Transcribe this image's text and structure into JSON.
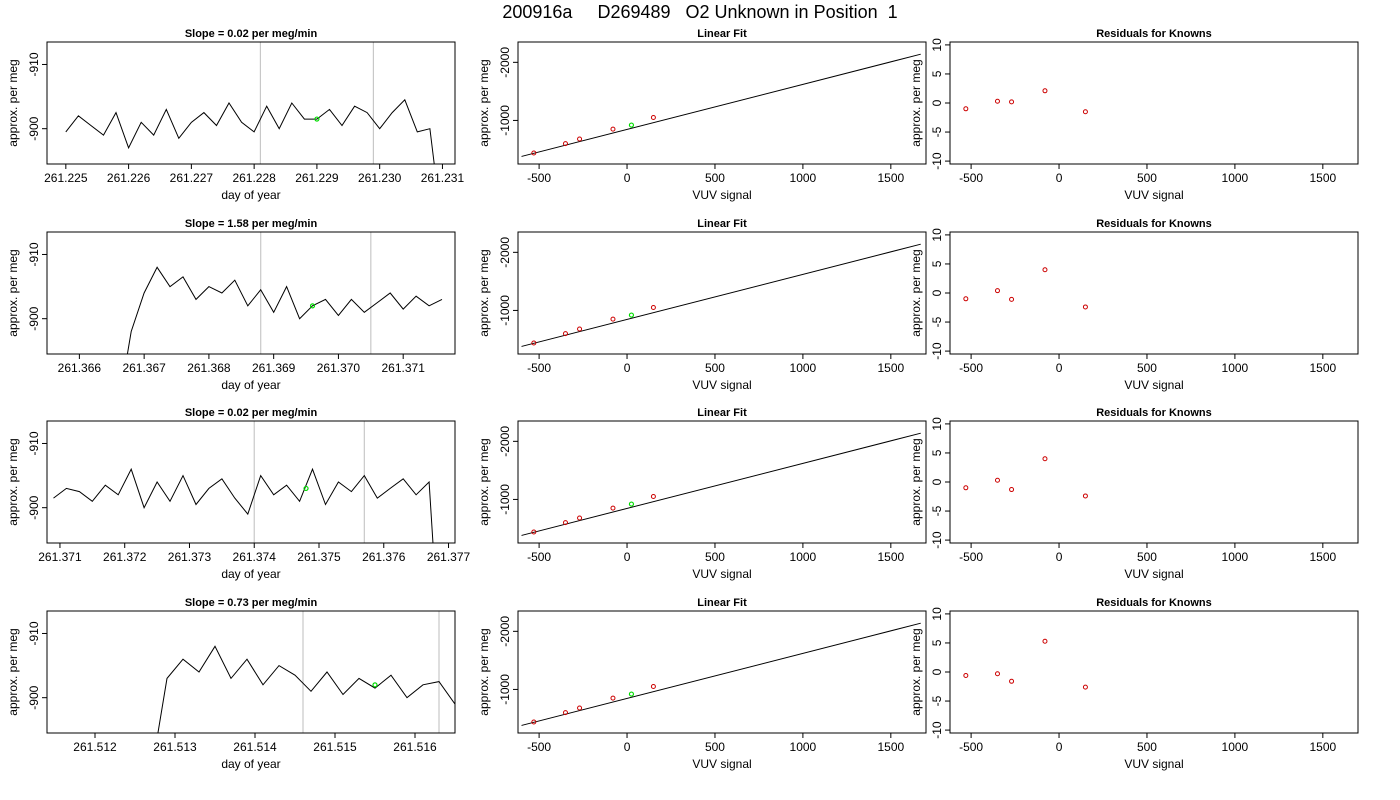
{
  "figure": {
    "title": "200916a     D269489   O2 Unknown in Position  1"
  },
  "colors": {
    "line": "#000000",
    "vertical_marker": "#c8c8c8",
    "current_point": "#00dd00",
    "known_point": "#cc0000"
  },
  "chart_data": [
    {
      "type": "line",
      "row": 1,
      "panel": "time-series",
      "title": "Slope =  0.02  per meg/min",
      "xlabel": "day of year",
      "ylabel": "approx. per meg",
      "xlim": [
        261.2247,
        261.2312
      ],
      "ylim": [
        -913.5,
        -894.5
      ],
      "y_reversed": true,
      "x_ticks": [
        261.225,
        261.226,
        261.227,
        261.228,
        261.229,
        261.23,
        261.231
      ],
      "x_tick_labels": [
        "261.225",
        "261.226",
        "261.227",
        "261.228",
        "261.229",
        "261.230",
        "261.231"
      ],
      "y_ticks": [
        -900,
        -910
      ],
      "y_tick_labels": [
        "-900",
        "-910"
      ],
      "vertical_lines": [
        261.2281,
        261.2299
      ],
      "current_point": {
        "x": 261.229,
        "y": -901.5
      },
      "series": [
        {
          "x": [
            261.225,
            261.2252,
            261.2254,
            261.2256,
            261.2258,
            261.226,
            261.2262,
            261.2264,
            261.2266,
            261.2268,
            261.227,
            261.2272,
            261.2274,
            261.2276,
            261.2278,
            261.228,
            261.2282,
            261.2284,
            261.2286,
            261.2288,
            261.229,
            261.2292,
            261.2294,
            261.2296,
            261.2298,
            261.23,
            261.2302,
            261.2304,
            261.2306,
            261.2308,
            261.2309
          ],
          "y": [
            -899.5,
            -902,
            -900.5,
            -899,
            -902.5,
            -897,
            -901,
            -899,
            -903,
            -898.5,
            -901,
            -902.5,
            -900.5,
            -904,
            -901,
            -899.5,
            -903.5,
            -900,
            -904,
            -901.5,
            -901.5,
            -903,
            -900.5,
            -903.5,
            -902.5,
            -900,
            -902.5,
            -904.5,
            -899.5,
            -900,
            -892
          ]
        }
      ]
    },
    {
      "type": "scatter",
      "row": 1,
      "panel": "linear-fit",
      "title": "Linear Fit",
      "xlabel": "VUV signal",
      "ylabel": "approx. per meg",
      "xlim": [
        -620,
        1700
      ],
      "ylim": [
        -2350,
        -250
      ],
      "y_reversed": true,
      "x_ticks": [
        -500,
        0,
        500,
        1000,
        1500
      ],
      "x_tick_labels": [
        "-500",
        "0",
        "500",
        "1000",
        "1500"
      ],
      "y_ticks": [
        -1000,
        -2000
      ],
      "y_tick_labels": [
        "-1000",
        "-2000"
      ],
      "fit_line": {
        "x": [
          -600,
          1670
        ],
        "y": [
          -380,
          -2140
        ]
      },
      "knowns": {
        "x": [
          -530,
          -350,
          -270,
          -80,
          150
        ],
        "y": [
          -440,
          -600,
          -680,
          -850,
          -1050
        ]
      },
      "unknown": {
        "x": [
          25
        ],
        "y": [
          -920
        ]
      }
    },
    {
      "type": "scatter",
      "row": 1,
      "panel": "residuals",
      "title": "Residuals for Knowns",
      "xlabel": "VUV signal",
      "ylabel": "approx. per meg",
      "xlim": [
        -620,
        1700
      ],
      "ylim": [
        -10.5,
        10.5
      ],
      "x_ticks": [
        -500,
        0,
        500,
        1000,
        1500
      ],
      "x_tick_labels": [
        "-500",
        "0",
        "500",
        "1000",
        "1500"
      ],
      "y_ticks": [
        10,
        5,
        0,
        -5,
        -10
      ],
      "y_tick_labels": [
        "10",
        "5",
        "0",
        "-5",
        "-10"
      ],
      "knowns": {
        "x": [
          -530,
          -350,
          -270,
          -80,
          150
        ],
        "y": [
          -1.0,
          0.3,
          0.2,
          2.1,
          -1.5
        ]
      }
    },
    {
      "type": "line",
      "row": 2,
      "panel": "time-series",
      "title": "Slope =  1.58  per meg/min",
      "xlabel": "day of year",
      "ylabel": "approx. per meg",
      "xlim": [
        261.3655,
        261.3718
      ],
      "ylim": [
        -913.5,
        -894.5
      ],
      "y_reversed": true,
      "x_ticks": [
        261.366,
        261.367,
        261.368,
        261.369,
        261.37,
        261.371
      ],
      "x_tick_labels": [
        "261.366",
        "261.367",
        "261.368",
        "261.369",
        "261.370",
        "261.371"
      ],
      "y_ticks": [
        -900,
        -910
      ],
      "y_tick_labels": [
        "-900",
        "-910"
      ],
      "vertical_lines": [
        261.3688,
        261.3705
      ],
      "current_point": {
        "x": 261.3696,
        "y": -902
      },
      "series": [
        {
          "x": [
            261.3666,
            261.3668,
            261.367,
            261.3672,
            261.3674,
            261.3676,
            261.3678,
            261.368,
            261.3682,
            261.3684,
            261.3686,
            261.3688,
            261.369,
            261.3692,
            261.3694,
            261.3696,
            261.3698,
            261.37,
            261.3702,
            261.3704,
            261.3706,
            261.3708,
            261.371,
            261.3712,
            261.3714,
            261.3716
          ],
          "y": [
            -886,
            -898,
            -904,
            -908,
            -905,
            -906.5,
            -903,
            -905,
            -904,
            -906,
            -902,
            -904.5,
            -901,
            -905,
            -900,
            -902,
            -903,
            -900.5,
            -903,
            -901,
            -902.5,
            -904,
            -901.5,
            -903.5,
            -902,
            -903
          ]
        }
      ]
    },
    {
      "type": "scatter",
      "row": 2,
      "panel": "linear-fit",
      "title": "Linear Fit",
      "xlabel": "VUV signal",
      "ylabel": "approx. per meg",
      "xlim": [
        -620,
        1700
      ],
      "ylim": [
        -2350,
        -250
      ],
      "y_reversed": true,
      "x_ticks": [
        -500,
        0,
        500,
        1000,
        1500
      ],
      "x_tick_labels": [
        "-500",
        "0",
        "500",
        "1000",
        "1500"
      ],
      "y_ticks": [
        -1000,
        -2000
      ],
      "y_tick_labels": [
        "-1000",
        "-2000"
      ],
      "fit_line": {
        "x": [
          -600,
          1670
        ],
        "y": [
          -380,
          -2140
        ]
      },
      "knowns": {
        "x": [
          -530,
          -350,
          -270,
          -80,
          150
        ],
        "y": [
          -440,
          -600,
          -680,
          -850,
          -1050
        ]
      },
      "unknown": {
        "x": [
          25
        ],
        "y": [
          -920
        ]
      }
    },
    {
      "type": "scatter",
      "row": 2,
      "panel": "residuals",
      "title": "Residuals for Knowns",
      "xlabel": "VUV signal",
      "ylabel": "approx. per meg",
      "xlim": [
        -620,
        1700
      ],
      "ylim": [
        -10.5,
        10.5
      ],
      "x_ticks": [
        -500,
        0,
        500,
        1000,
        1500
      ],
      "x_tick_labels": [
        "-500",
        "0",
        "500",
        "1000",
        "1500"
      ],
      "y_ticks": [
        10,
        5,
        0,
        -5,
        -10
      ],
      "y_tick_labels": [
        "10",
        "5",
        "0",
        "-5",
        "-10"
      ],
      "knowns": {
        "x": [
          -530,
          -350,
          -270,
          -80,
          150
        ],
        "y": [
          -1.0,
          0.4,
          -1.1,
          4.0,
          -2.4
        ]
      }
    },
    {
      "type": "line",
      "row": 3,
      "panel": "time-series",
      "title": "Slope =  0.02  per meg/min",
      "xlabel": "day of year",
      "ylabel": "approx. per meg",
      "xlim": [
        261.3708,
        261.3771
      ],
      "ylim": [
        -913.5,
        -894.5
      ],
      "y_reversed": true,
      "x_ticks": [
        261.371,
        261.372,
        261.373,
        261.374,
        261.375,
        261.376,
        261.377
      ],
      "x_tick_labels": [
        "261.371",
        "261.372",
        "261.373",
        "261.374",
        "261.375",
        "261.376",
        "261.377"
      ],
      "y_ticks": [
        -900,
        -910
      ],
      "y_tick_labels": [
        "-900",
        "-910"
      ],
      "vertical_lines": [
        261.374,
        261.3757
      ],
      "current_point": {
        "x": 261.3748,
        "y": -903
      },
      "series": [
        {
          "x": [
            261.3709,
            261.3711,
            261.3713,
            261.3715,
            261.3717,
            261.3719,
            261.3721,
            261.3723,
            261.3725,
            261.3727,
            261.3729,
            261.3731,
            261.3733,
            261.3735,
            261.3737,
            261.3739,
            261.3741,
            261.3743,
            261.3745,
            261.3747,
            261.3749,
            261.3751,
            261.3753,
            261.3755,
            261.3757,
            261.3759,
            261.3761,
            261.3763,
            261.3765,
            261.3767,
            261.3768
          ],
          "y": [
            -901.5,
            -903,
            -902.5,
            -901,
            -903.5,
            -902,
            -906,
            -900,
            -904,
            -901,
            -905,
            -900.5,
            -903,
            -904.5,
            -901.5,
            -899,
            -905,
            -902,
            -903.5,
            -901,
            -906,
            -900.5,
            -904,
            -902.5,
            -905,
            -901.5,
            -903,
            -904.5,
            -902,
            -904,
            -888
          ]
        }
      ]
    },
    {
      "type": "scatter",
      "row": 3,
      "panel": "linear-fit",
      "title": "Linear Fit",
      "xlabel": "VUV signal",
      "ylabel": "approx. per meg",
      "xlim": [
        -620,
        1700
      ],
      "ylim": [
        -2350,
        -250
      ],
      "y_reversed": true,
      "x_ticks": [
        -500,
        0,
        500,
        1000,
        1500
      ],
      "x_tick_labels": [
        "-500",
        "0",
        "500",
        "1000",
        "1500"
      ],
      "y_ticks": [
        -1000,
        -2000
      ],
      "y_tick_labels": [
        "-1000",
        "-2000"
      ],
      "fit_line": {
        "x": [
          -600,
          1670
        ],
        "y": [
          -380,
          -2140
        ]
      },
      "knowns": {
        "x": [
          -530,
          -350,
          -270,
          -80,
          150
        ],
        "y": [
          -440,
          -600,
          -680,
          -850,
          -1050
        ]
      },
      "unknown": {
        "x": [
          25
        ],
        "y": [
          -920
        ]
      }
    },
    {
      "type": "scatter",
      "row": 3,
      "panel": "residuals",
      "title": "Residuals for Knowns",
      "xlabel": "VUV signal",
      "ylabel": "approx. per meg",
      "xlim": [
        -620,
        1700
      ],
      "ylim": [
        -10.5,
        10.5
      ],
      "x_ticks": [
        -500,
        0,
        500,
        1000,
        1500
      ],
      "x_tick_labels": [
        "-500",
        "0",
        "500",
        "1000",
        "1500"
      ],
      "y_ticks": [
        10,
        5,
        0,
        -5,
        -10
      ],
      "y_tick_labels": [
        "10",
        "5",
        "0",
        "-5",
        "-10"
      ],
      "knowns": {
        "x": [
          -530,
          -350,
          -270,
          -80,
          150
        ],
        "y": [
          -1.0,
          0.3,
          -1.3,
          4.0,
          -2.4
        ]
      }
    },
    {
      "type": "line",
      "row": 4,
      "panel": "time-series",
      "title": "Slope =  0.73  per meg/min",
      "xlabel": "day of year",
      "ylabel": "approx. per meg",
      "xlim": [
        261.5114,
        261.5165
      ],
      "ylim": [
        -913.5,
        -894.5
      ],
      "y_reversed": true,
      "x_ticks": [
        261.512,
        261.513,
        261.514,
        261.515,
        261.516
      ],
      "x_tick_labels": [
        "261.512",
        "261.513",
        "261.514",
        "261.515",
        "261.516"
      ],
      "y_ticks": [
        -900,
        -910
      ],
      "y_tick_labels": [
        "-900",
        "-910"
      ],
      "vertical_lines": [
        261.5146,
        261.5163
      ],
      "current_point": {
        "x": 261.5155,
        "y": -902
      },
      "series": [
        {
          "x": [
            261.5127,
            261.5129,
            261.5131,
            261.5133,
            261.5135,
            261.5137,
            261.5139,
            261.5141,
            261.5143,
            261.5145,
            261.5147,
            261.5149,
            261.5151,
            261.5153,
            261.5155,
            261.5157,
            261.5159,
            261.5161,
            261.5163,
            261.5165
          ],
          "y": [
            -888,
            -903,
            -906,
            -904,
            -908,
            -903,
            -906,
            -902,
            -905,
            -903.5,
            -901,
            -904,
            -900.5,
            -903,
            -901.5,
            -903.5,
            -900,
            -902,
            -902.5,
            -899
          ]
        }
      ]
    },
    {
      "type": "scatter",
      "row": 4,
      "panel": "linear-fit",
      "title": "Linear Fit",
      "xlabel": "VUV signal",
      "ylabel": "approx. per meg",
      "xlim": [
        -620,
        1700
      ],
      "ylim": [
        -2350,
        -250
      ],
      "y_reversed": true,
      "x_ticks": [
        -500,
        0,
        500,
        1000,
        1500
      ],
      "x_tick_labels": [
        "-500",
        "0",
        "500",
        "1000",
        "1500"
      ],
      "y_ticks": [
        -1000,
        -2000
      ],
      "y_tick_labels": [
        "-1000",
        "-2000"
      ],
      "fit_line": {
        "x": [
          -600,
          1670
        ],
        "y": [
          -380,
          -2140
        ]
      },
      "knowns": {
        "x": [
          -530,
          -350,
          -270,
          -80,
          150
        ],
        "y": [
          -440,
          -600,
          -680,
          -850,
          -1050
        ]
      },
      "unknown": {
        "x": [
          25
        ],
        "y": [
          -920
        ]
      }
    },
    {
      "type": "scatter",
      "row": 4,
      "panel": "residuals",
      "title": "Residuals for Knowns",
      "xlabel": "VUV signal",
      "ylabel": "approx. per meg",
      "xlim": [
        -620,
        1700
      ],
      "ylim": [
        -10.5,
        10.5
      ],
      "x_ticks": [
        -500,
        0,
        500,
        1000,
        1500
      ],
      "x_tick_labels": [
        "-500",
        "0",
        "500",
        "1000",
        "1500"
      ],
      "y_ticks": [
        10,
        5,
        0,
        -5,
        -10
      ],
      "y_tick_labels": [
        "10",
        "5",
        "0",
        "-5",
        "-10"
      ],
      "knowns": {
        "x": [
          -530,
          -350,
          -270,
          -80,
          150
        ],
        "y": [
          -0.6,
          -0.3,
          -1.6,
          5.3,
          -2.6
        ]
      }
    }
  ]
}
